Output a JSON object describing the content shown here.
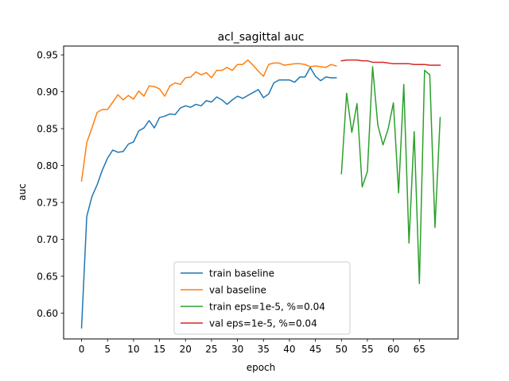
{
  "chart_data": {
    "type": "line",
    "title": "acl_sagittal auc",
    "xlabel": "epoch",
    "ylabel": "auc",
    "xlim": [
      -3.45,
      72.45
    ],
    "ylim": [
      0.565,
      0.962
    ],
    "xticks": [
      0,
      5,
      10,
      15,
      20,
      25,
      30,
      35,
      40,
      45,
      50,
      55,
      60,
      65
    ],
    "yticks": [
      0.6,
      0.65,
      0.7,
      0.75,
      0.8,
      0.85,
      0.9,
      0.95
    ],
    "ytick_labels": [
      "0.60",
      "0.65",
      "0.70",
      "0.75",
      "0.80",
      "0.85",
      "0.90",
      "0.95"
    ],
    "grid": false,
    "legend_position": "lower center",
    "series": [
      {
        "name": "train baseline",
        "color": "#1f77b4",
        "x": [
          0,
          1,
          2,
          3,
          4,
          5,
          6,
          7,
          8,
          9,
          10,
          11,
          12,
          13,
          14,
          15,
          16,
          17,
          18,
          19,
          20,
          21,
          22,
          23,
          24,
          25,
          26,
          27,
          28,
          29,
          30,
          31,
          32,
          33,
          34,
          35,
          36,
          37,
          38,
          39,
          40,
          41,
          42,
          43,
          44,
          45,
          46,
          47,
          48,
          49
        ],
        "y": [
          0.58,
          0.731,
          0.758,
          0.774,
          0.794,
          0.81,
          0.821,
          0.818,
          0.819,
          0.829,
          0.832,
          0.847,
          0.851,
          0.861,
          0.851,
          0.865,
          0.867,
          0.87,
          0.869,
          0.878,
          0.881,
          0.879,
          0.883,
          0.881,
          0.888,
          0.886,
          0.893,
          0.889,
          0.883,
          0.889,
          0.894,
          0.891,
          0.895,
          0.899,
          0.903,
          0.892,
          0.897,
          0.912,
          0.916,
          0.916,
          0.916,
          0.913,
          0.92,
          0.92,
          0.933,
          0.921,
          0.915,
          0.92,
          0.919,
          0.919
        ]
      },
      {
        "name": "val baseline",
        "color": "#ff7f0e",
        "x": [
          0,
          1,
          2,
          3,
          4,
          5,
          6,
          7,
          8,
          9,
          10,
          11,
          12,
          13,
          14,
          15,
          16,
          17,
          18,
          19,
          20,
          21,
          22,
          23,
          24,
          25,
          26,
          27,
          28,
          29,
          30,
          31,
          32,
          33,
          34,
          35,
          36,
          37,
          38,
          39,
          40,
          41,
          42,
          43,
          44,
          45,
          46,
          47,
          48,
          49
        ],
        "y": [
          0.779,
          0.831,
          0.851,
          0.872,
          0.876,
          0.876,
          0.886,
          0.896,
          0.889,
          0.895,
          0.89,
          0.901,
          0.894,
          0.908,
          0.907,
          0.904,
          0.894,
          0.908,
          0.912,
          0.91,
          0.919,
          0.92,
          0.927,
          0.923,
          0.926,
          0.919,
          0.929,
          0.929,
          0.933,
          0.929,
          0.937,
          0.937,
          0.943,
          0.936,
          0.928,
          0.921,
          0.937,
          0.939,
          0.939,
          0.936,
          0.937,
          0.938,
          0.938,
          0.937,
          0.934,
          0.935,
          0.934,
          0.933,
          0.937,
          0.935
        ]
      },
      {
        "name": "train eps=1e-5, %=0.04",
        "color": "#2ca02c",
        "x": [
          50,
          51,
          52,
          53,
          54,
          55,
          56,
          57,
          58,
          59,
          60,
          61,
          62,
          63,
          64,
          65,
          66,
          67,
          68,
          69
        ],
        "y": [
          0.789,
          0.898,
          0.845,
          0.884,
          0.771,
          0.792,
          0.934,
          0.855,
          0.828,
          0.85,
          0.885,
          0.763,
          0.91,
          0.695,
          0.846,
          0.64,
          0.929,
          0.923,
          0.716,
          0.865
        ]
      },
      {
        "name": "val eps=1e-5, %=0.04",
        "color": "#d62728",
        "x": [
          50,
          51,
          52,
          53,
          54,
          55,
          56,
          57,
          58,
          59,
          60,
          61,
          62,
          63,
          64,
          65,
          66,
          67,
          68,
          69
        ],
        "y": [
          0.942,
          0.943,
          0.943,
          0.943,
          0.942,
          0.942,
          0.94,
          0.94,
          0.94,
          0.939,
          0.938,
          0.938,
          0.938,
          0.938,
          0.937,
          0.937,
          0.937,
          0.936,
          0.936,
          0.936
        ]
      }
    ]
  }
}
